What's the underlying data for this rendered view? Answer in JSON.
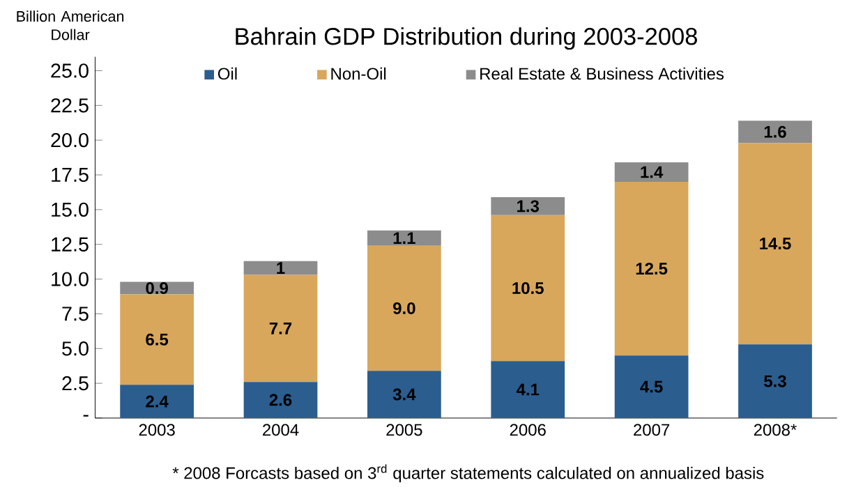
{
  "chart_data": {
    "type": "bar",
    "stacked": true,
    "title": "Bahrain GDP Distribution during 2003-2008",
    "ylabel": "Billion American Dollar",
    "categories": [
      "2003",
      "2004",
      "2005",
      "2006",
      "2007",
      "2008*"
    ],
    "series": [
      {
        "name": "Oil",
        "color": "#2b5d8f",
        "values": [
          2.4,
          2.6,
          3.4,
          4.1,
          4.5,
          5.3
        ],
        "value_labels": [
          "2.4",
          "2.6",
          "3.4",
          "4.1",
          "4.5",
          "5.3"
        ]
      },
      {
        "name": "Non-Oil",
        "color": "#d8a75c",
        "values": [
          6.5,
          7.7,
          9.0,
          10.5,
          12.5,
          14.5
        ],
        "value_labels": [
          "6.5",
          "7.7",
          "9.0",
          "10.5",
          "12.5",
          "14.5"
        ]
      },
      {
        "name": "Real Estate & Business Activities",
        "color": "#8c8c8c",
        "values": [
          0.9,
          1,
          1.1,
          1.3,
          1.4,
          1.6
        ],
        "value_labels": [
          "0.9",
          "1",
          "1.1",
          "1.3",
          "1.4",
          "1.6"
        ]
      }
    ],
    "ylim": [
      0,
      26
    ],
    "yticks": [
      {
        "value": 0,
        "label": "-"
      },
      {
        "value": 2.5,
        "label": "2.5"
      },
      {
        "value": 5,
        "label": "5.0"
      },
      {
        "value": 7.5,
        "label": "7.5"
      },
      {
        "value": 10,
        "label": "10.0"
      },
      {
        "value": 12.5,
        "label": "12.5"
      },
      {
        "value": 15,
        "label": "15.0"
      },
      {
        "value": 17.5,
        "label": "17.5"
      },
      {
        "value": 20,
        "label": "20.0"
      },
      {
        "value": 22.5,
        "label": "22.5"
      },
      {
        "value": 25,
        "label": "25.0"
      }
    ],
    "legend": "top",
    "annotations": [
      "* 2008 Forcasts based on 3$^{rd}$ quarter statements calculated on annualized basis"
    ]
  }
}
